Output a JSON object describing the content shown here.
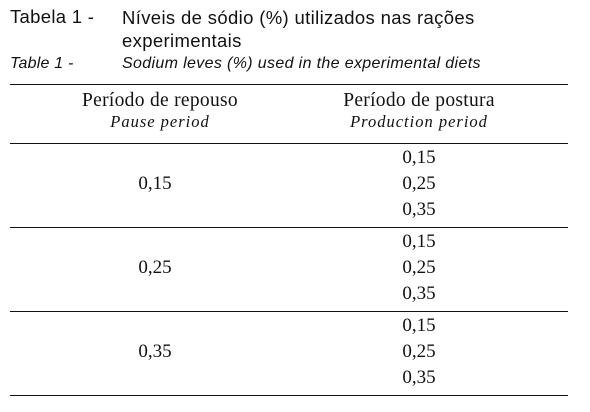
{
  "caption": {
    "pt_label": "Tabela 1 -",
    "pt_text": "Níveis de sódio (%) utilizados nas rações experimentais",
    "en_label": "Table 1 -",
    "en_text": "Sodium leves (%)  used in the experimental diets"
  },
  "table": {
    "headers": [
      {
        "pt": "Período de repouso",
        "en": "Pause period"
      },
      {
        "pt": "Período de postura",
        "en": "Production period"
      }
    ],
    "rows": [
      {
        "pause": "0,15",
        "production": [
          "0,15",
          "0,25",
          "0,35"
        ]
      },
      {
        "pause": "0,25",
        "production": [
          "0,15",
          "0,25",
          "0,35"
        ]
      },
      {
        "pause": "0,35",
        "production": [
          "0,15",
          "0,25",
          "0,35"
        ]
      }
    ]
  }
}
